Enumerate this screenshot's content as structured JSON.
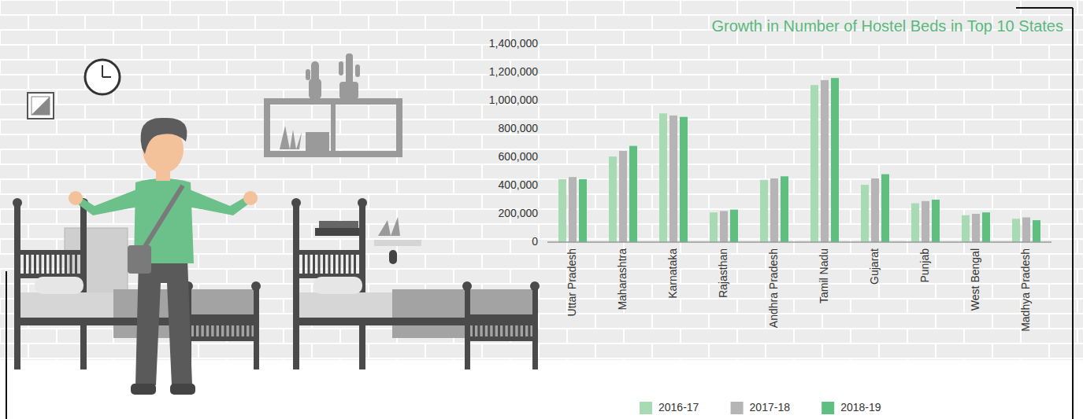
{
  "chart_data": {
    "type": "bar",
    "title": "Growth in Number of Hostel Beds in Top 10 States",
    "categories": [
      "Uttar Pradesh",
      "Maharashtra",
      "Karnataka",
      "Rajasthan",
      "Andhra Pradesh",
      "Tamil Nadu",
      "Gujarat",
      "Punjab",
      "West Bengal",
      "Madhya Pradesh"
    ],
    "series": [
      {
        "name": "2016-17",
        "color": "#a6dbb3",
        "values": [
          445000,
          605000,
          910000,
          210000,
          440000,
          1110000,
          405000,
          275000,
          190000,
          165000
        ]
      },
      {
        "name": "2017-18",
        "color": "#b5b5b5",
        "values": [
          460000,
          645000,
          895000,
          220000,
          450000,
          1145000,
          450000,
          290000,
          200000,
          175000
        ]
      },
      {
        "name": "2018-19",
        "color": "#5dbf80",
        "values": [
          445000,
          680000,
          885000,
          230000,
          465000,
          1160000,
          480000,
          300000,
          210000,
          155000
        ]
      }
    ],
    "ylim": [
      0,
      1400000
    ],
    "yticks": [
      0,
      {
        "value": 200000,
        "label": "200,000"
      },
      {
        "value": 400000,
        "label": "400,000"
      },
      {
        "value": 600000,
        "label": "600,000"
      },
      {
        "value": 800000,
        "label": "800,000"
      },
      {
        "value": 1000000,
        "label": "1,000,000"
      },
      {
        "value": 1200000,
        "label": "1,200,000"
      },
      {
        "value": 1400000,
        "label": "1,400,000"
      }
    ],
    "grid": false,
    "legend": "bottom"
  }
}
